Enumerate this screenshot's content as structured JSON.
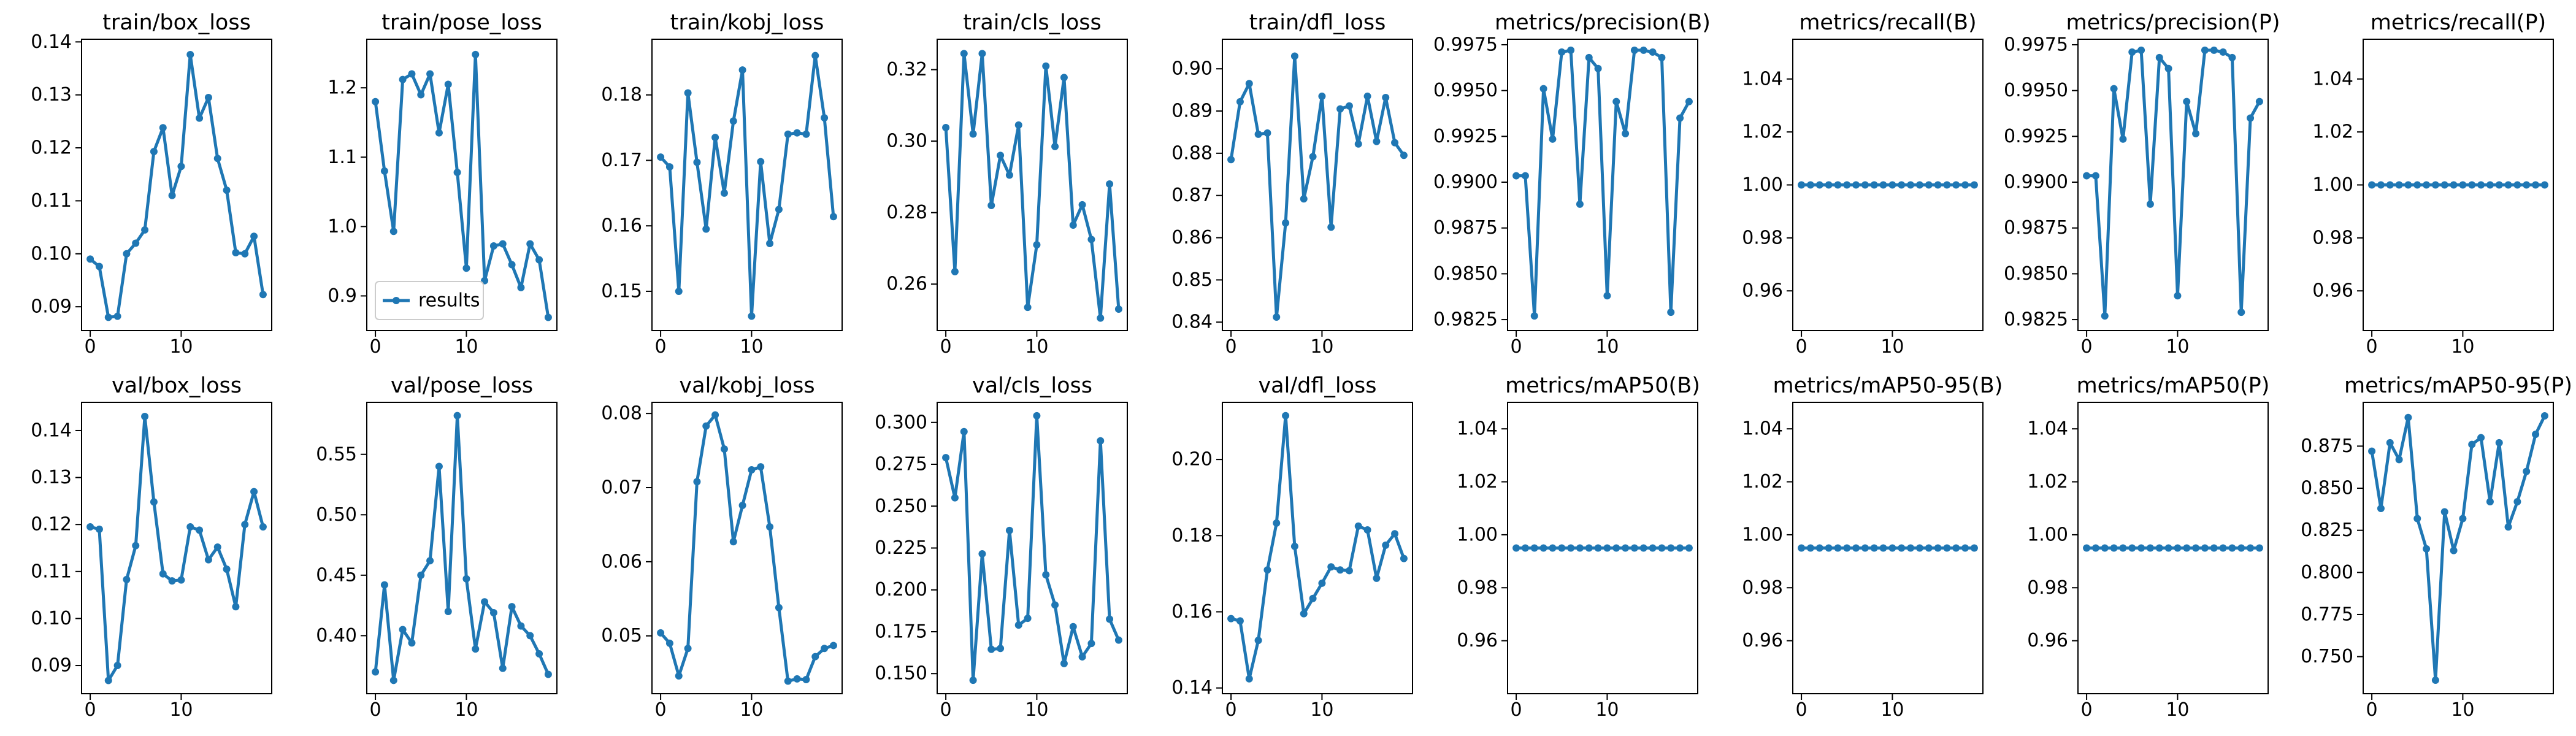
{
  "series_color": "#1f77b4",
  "legend": {
    "label": "results",
    "panel": 1,
    "location": "lower-left"
  },
  "chart_data": [
    {
      "type": "line",
      "title": "train/box_loss",
      "x": [
        0,
        1,
        2,
        3,
        4,
        5,
        6,
        7,
        8,
        9,
        10,
        11,
        12,
        13,
        14,
        15,
        16,
        17,
        18,
        19
      ],
      "values": [
        0.099,
        0.0976,
        0.088,
        0.0882,
        0.1,
        0.102,
        0.1045,
        0.1193,
        0.1238,
        0.111,
        0.1165,
        0.1376,
        0.1256,
        0.1295,
        0.118,
        0.112,
        0.1002,
        0.1,
        0.1033,
        0.0923
      ],
      "ylim": [
        0.0855,
        0.1405
      ],
      "yticks": [
        0.09,
        0.1,
        0.11,
        0.12,
        0.13,
        0.14
      ],
      "ytick_labels": [
        "0.09",
        "0.10",
        "0.11",
        "0.12",
        "0.13",
        "0.14"
      ],
      "xlim": [
        -0.95,
        19.95
      ],
      "xticks": [
        0,
        10
      ],
      "xtick_labels": [
        "0",
        "10"
      ]
    },
    {
      "type": "line",
      "title": "train/pose_loss",
      "x": [
        0,
        1,
        2,
        3,
        4,
        5,
        6,
        7,
        8,
        9,
        10,
        11,
        12,
        13,
        14,
        15,
        16,
        17,
        18,
        19
      ],
      "values": [
        1.18,
        1.08,
        0.993,
        1.212,
        1.22,
        1.19,
        1.22,
        1.135,
        1.205,
        1.078,
        0.94,
        1.248,
        0.922,
        0.972,
        0.975,
        0.945,
        0.912,
        0.975,
        0.952,
        0.869
      ],
      "ylim": [
        0.85,
        1.27
      ],
      "yticks": [
        0.9,
        1.0,
        1.1,
        1.2
      ],
      "ytick_labels": [
        "0.9",
        "1.0",
        "1.1",
        "1.2"
      ],
      "xlim": [
        -0.95,
        19.95
      ],
      "xticks": [
        0,
        10
      ],
      "xtick_labels": [
        "0",
        "10"
      ]
    },
    {
      "type": "line",
      "title": "train/kobj_loss",
      "x": [
        0,
        1,
        2,
        3,
        4,
        5,
        6,
        7,
        8,
        9,
        10,
        11,
        12,
        13,
        14,
        15,
        16,
        17,
        18,
        19
      ],
      "values": [
        0.1705,
        0.169,
        0.15,
        0.1803,
        0.1697,
        0.1595,
        0.1735,
        0.165,
        0.176,
        0.1838,
        0.1462,
        0.1698,
        0.1573,
        0.1625,
        0.174,
        0.1742,
        0.174,
        0.186,
        0.1765,
        0.1614
      ],
      "ylim": [
        0.144,
        0.1885
      ],
      "yticks": [
        0.15,
        0.16,
        0.17,
        0.18
      ],
      "ytick_labels": [
        "0.15",
        "0.16",
        "0.17",
        "0.18"
      ],
      "xlim": [
        -0.95,
        19.95
      ],
      "xticks": [
        0,
        10
      ],
      "xtick_labels": [
        "0",
        "10"
      ]
    },
    {
      "type": "line",
      "title": "train/cls_loss",
      "x": [
        0,
        1,
        2,
        3,
        4,
        5,
        6,
        7,
        8,
        9,
        10,
        11,
        12,
        13,
        14,
        15,
        16,
        17,
        18,
        19
      ],
      "values": [
        0.3038,
        0.2635,
        0.3245,
        0.302,
        0.3245,
        0.282,
        0.296,
        0.2905,
        0.3045,
        0.2535,
        0.271,
        0.321,
        0.2985,
        0.3178,
        0.2765,
        0.2822,
        0.2725,
        0.2505,
        0.288,
        0.253
      ],
      "ylim": [
        0.247,
        0.3285
      ],
      "yticks": [
        0.26,
        0.28,
        0.3,
        0.32
      ],
      "ytick_labels": [
        "0.26",
        "0.28",
        "0.30",
        "0.32"
      ],
      "xlim": [
        -0.95,
        19.95
      ],
      "xticks": [
        0,
        10
      ],
      "xtick_labels": [
        "0",
        "10"
      ]
    },
    {
      "type": "line",
      "title": "train/dfl_loss",
      "x": [
        0,
        1,
        2,
        3,
        4,
        5,
        6,
        7,
        8,
        9,
        10,
        11,
        12,
        13,
        14,
        15,
        16,
        17,
        18,
        19
      ],
      "values": [
        0.8785,
        0.8922,
        0.8965,
        0.8845,
        0.8848,
        0.8412,
        0.8635,
        0.903,
        0.8692,
        0.8792,
        0.8935,
        0.8625,
        0.8905,
        0.8912,
        0.8822,
        0.8935,
        0.8828,
        0.8932,
        0.8825,
        0.8795
      ],
      "ylim": [
        0.838,
        0.907
      ],
      "yticks": [
        0.84,
        0.85,
        0.86,
        0.87,
        0.88,
        0.89,
        0.9
      ],
      "ytick_labels": [
        "0.84",
        "0.85",
        "0.86",
        "0.87",
        "0.88",
        "0.89",
        "0.90"
      ],
      "xlim": [
        -0.95,
        19.95
      ],
      "xticks": [
        0,
        10
      ],
      "xtick_labels": [
        "0",
        "10"
      ]
    },
    {
      "type": "line",
      "title": "metrics/precision(B)",
      "x": [
        0,
        1,
        2,
        3,
        4,
        5,
        6,
        7,
        8,
        9,
        10,
        11,
        12,
        13,
        14,
        15,
        16,
        17,
        18,
        19
      ],
      "values": [
        0.99035,
        0.99035,
        0.9827,
        0.9951,
        0.99235,
        0.9971,
        0.9972,
        0.9888,
        0.9968,
        0.9962,
        0.9838,
        0.9944,
        0.99265,
        0.9972,
        0.9972,
        0.9971,
        0.9968,
        0.9829,
        0.9935,
        0.9944
      ],
      "ylim": [
        0.9819,
        0.9978
      ],
      "yticks": [
        0.9825,
        0.985,
        0.9875,
        0.99,
        0.9925,
        0.995,
        0.9975
      ],
      "ytick_labels": [
        "0.9825",
        "0.9850",
        "0.9875",
        "0.9900",
        "0.9925",
        "0.9950",
        "0.9975"
      ],
      "xlim": [
        -0.95,
        19.95
      ],
      "xticks": [
        0,
        10
      ],
      "xtick_labels": [
        "0",
        "10"
      ]
    },
    {
      "type": "line",
      "title": "metrics/recall(B)",
      "x": [
        0,
        1,
        2,
        3,
        4,
        5,
        6,
        7,
        8,
        9,
        10,
        11,
        12,
        13,
        14,
        15,
        16,
        17,
        18,
        19
      ],
      "values": [
        1,
        1,
        1,
        1,
        1,
        1,
        1,
        1,
        1,
        1,
        1,
        1,
        1,
        1,
        1,
        1,
        1,
        1,
        1,
        1
      ],
      "ylim": [
        0.945,
        1.055
      ],
      "yticks": [
        0.96,
        0.98,
        1.0,
        1.02,
        1.04
      ],
      "ytick_labels": [
        "0.96",
        "0.98",
        "1.00",
        "1.02",
        "1.04"
      ],
      "xlim": [
        -0.95,
        19.95
      ],
      "xticks": [
        0,
        10
      ],
      "xtick_labels": [
        "0",
        "10"
      ]
    },
    {
      "type": "line",
      "title": "metrics/precision(P)",
      "x": [
        0,
        1,
        2,
        3,
        4,
        5,
        6,
        7,
        8,
        9,
        10,
        11,
        12,
        13,
        14,
        15,
        16,
        17,
        18,
        19
      ],
      "values": [
        0.99035,
        0.99035,
        0.9827,
        0.9951,
        0.99235,
        0.9971,
        0.9972,
        0.9888,
        0.9968,
        0.9962,
        0.9838,
        0.9944,
        0.99265,
        0.9972,
        0.9972,
        0.9971,
        0.9968,
        0.9829,
        0.9935,
        0.9944
      ],
      "ylim": [
        0.9819,
        0.9978
      ],
      "yticks": [
        0.9825,
        0.985,
        0.9875,
        0.99,
        0.9925,
        0.995,
        0.9975
      ],
      "ytick_labels": [
        "0.9825",
        "0.9850",
        "0.9875",
        "0.9900",
        "0.9925",
        "0.9950",
        "0.9975"
      ],
      "xlim": [
        -0.95,
        19.95
      ],
      "xticks": [
        0,
        10
      ],
      "xtick_labels": [
        "0",
        "10"
      ]
    },
    {
      "type": "line",
      "title": "metrics/recall(P)",
      "x": [
        0,
        1,
        2,
        3,
        4,
        5,
        6,
        7,
        8,
        9,
        10,
        11,
        12,
        13,
        14,
        15,
        16,
        17,
        18,
        19
      ],
      "values": [
        1,
        1,
        1,
        1,
        1,
        1,
        1,
        1,
        1,
        1,
        1,
        1,
        1,
        1,
        1,
        1,
        1,
        1,
        1,
        1
      ],
      "ylim": [
        0.945,
        1.055
      ],
      "yticks": [
        0.96,
        0.98,
        1.0,
        1.02,
        1.04
      ],
      "ytick_labels": [
        "0.96",
        "0.98",
        "1.00",
        "1.02",
        "1.04"
      ],
      "xlim": [
        -0.95,
        19.95
      ],
      "xticks": [
        0,
        10
      ],
      "xtick_labels": [
        "0",
        "10"
      ]
    },
    {
      "type": "line",
      "title": "val/box_loss",
      "x": [
        0,
        1,
        2,
        3,
        4,
        5,
        6,
        7,
        8,
        9,
        10,
        11,
        12,
        13,
        14,
        15,
        16,
        17,
        18,
        19
      ],
      "values": [
        0.1195,
        0.119,
        0.0868,
        0.09,
        0.1083,
        0.1155,
        0.143,
        0.1248,
        0.1095,
        0.108,
        0.1082,
        0.1195,
        0.1188,
        0.1125,
        0.1152,
        0.1105,
        0.1025,
        0.12,
        0.127,
        0.1195
      ],
      "ylim": [
        0.084,
        0.146
      ],
      "yticks": [
        0.09,
        0.1,
        0.11,
        0.12,
        0.13,
        0.14
      ],
      "ytick_labels": [
        "0.09",
        "0.10",
        "0.11",
        "0.12",
        "0.13",
        "0.14"
      ],
      "xlim": [
        -0.95,
        19.95
      ],
      "xticks": [
        0,
        10
      ],
      "xtick_labels": [
        "0",
        "10"
      ]
    },
    {
      "type": "line",
      "title": "val/pose_loss",
      "x": [
        0,
        1,
        2,
        3,
        4,
        5,
        6,
        7,
        8,
        9,
        10,
        11,
        12,
        13,
        14,
        15,
        16,
        17,
        18,
        19
      ],
      "values": [
        0.37,
        0.442,
        0.363,
        0.405,
        0.394,
        0.45,
        0.462,
        0.54,
        0.42,
        0.582,
        0.447,
        0.389,
        0.428,
        0.419,
        0.373,
        0.424,
        0.408,
        0.4,
        0.385,
        0.368
      ],
      "ylim": [
        0.352,
        0.593
      ],
      "yticks": [
        0.4,
        0.45,
        0.5,
        0.55
      ],
      "ytick_labels": [
        "0.40",
        "0.45",
        "0.50",
        "0.55"
      ],
      "xlim": [
        -0.95,
        19.95
      ],
      "xticks": [
        0,
        10
      ],
      "xtick_labels": [
        "0",
        "10"
      ]
    },
    {
      "type": "line",
      "title": "val/kobj_loss",
      "x": [
        0,
        1,
        2,
        3,
        4,
        5,
        6,
        7,
        8,
        9,
        10,
        11,
        12,
        13,
        14,
        15,
        16,
        17,
        18,
        19
      ],
      "values": [
        0.0504,
        0.049,
        0.0446,
        0.0483,
        0.0708,
        0.0783,
        0.0798,
        0.0752,
        0.0627,
        0.0676,
        0.0724,
        0.0728,
        0.0647,
        0.0538,
        0.0439,
        0.0442,
        0.0441,
        0.0472,
        0.0483,
        0.0487
      ],
      "ylim": [
        0.0422,
        0.0815
      ],
      "yticks": [
        0.05,
        0.06,
        0.07,
        0.08
      ],
      "ytick_labels": [
        "0.05",
        "0.06",
        "0.07",
        "0.08"
      ],
      "xlim": [
        -0.95,
        19.95
      ],
      "xticks": [
        0,
        10
      ],
      "xtick_labels": [
        "0",
        "10"
      ]
    },
    {
      "type": "line",
      "title": "val/cls_loss",
      "x": [
        0,
        1,
        2,
        3,
        4,
        5,
        6,
        7,
        8,
        9,
        10,
        11,
        12,
        13,
        14,
        15,
        16,
        17,
        18,
        19
      ],
      "values": [
        0.279,
        0.255,
        0.2945,
        0.146,
        0.2215,
        0.1645,
        0.165,
        0.2355,
        0.179,
        0.183,
        0.304,
        0.209,
        0.191,
        0.156,
        0.178,
        0.16,
        0.168,
        0.289,
        0.1825,
        0.17
      ],
      "ylim": [
        0.138,
        0.312
      ],
      "yticks": [
        0.15,
        0.175,
        0.2,
        0.225,
        0.25,
        0.275,
        0.3
      ],
      "ytick_labels": [
        "0.150",
        "0.175",
        "0.200",
        "0.225",
        "0.250",
        "0.275",
        "0.300"
      ],
      "xlim": [
        -0.95,
        19.95
      ],
      "xticks": [
        0,
        10
      ],
      "xtick_labels": [
        "0",
        "10"
      ]
    },
    {
      "type": "line",
      "title": "val/dfl_loss",
      "x": [
        0,
        1,
        2,
        3,
        4,
        5,
        6,
        7,
        8,
        9,
        10,
        11,
        12,
        13,
        14,
        15,
        16,
        17,
        18,
        19
      ],
      "values": [
        0.1582,
        0.1576,
        0.1424,
        0.1525,
        0.171,
        0.1833,
        0.2115,
        0.1772,
        0.1595,
        0.1635,
        0.1675,
        0.1718,
        0.171,
        0.1708,
        0.1825,
        0.1815,
        0.1688,
        0.1775,
        0.1805,
        0.174
      ],
      "ylim": [
        0.1385,
        0.215
      ],
      "yticks": [
        0.14,
        0.16,
        0.18,
        0.2
      ],
      "ytick_labels": [
        "0.14",
        "0.16",
        "0.18",
        "0.20"
      ],
      "xlim": [
        -0.95,
        19.95
      ],
      "xticks": [
        0,
        10
      ],
      "xtick_labels": [
        "0",
        "10"
      ]
    },
    {
      "type": "line",
      "title": "metrics/mAP50(B)",
      "x": [
        0,
        1,
        2,
        3,
        4,
        5,
        6,
        7,
        8,
        9,
        10,
        11,
        12,
        13,
        14,
        15,
        16,
        17,
        18,
        19
      ],
      "values": [
        0.995,
        0.995,
        0.995,
        0.995,
        0.995,
        0.995,
        0.995,
        0.995,
        0.995,
        0.995,
        0.995,
        0.995,
        0.995,
        0.995,
        0.995,
        0.995,
        0.995,
        0.995,
        0.995,
        0.995
      ],
      "ylim": [
        0.94,
        1.05
      ],
      "yticks": [
        0.96,
        0.98,
        1.0,
        1.02,
        1.04
      ],
      "ytick_labels": [
        "0.96",
        "0.98",
        "1.00",
        "1.02",
        "1.04"
      ],
      "xlim": [
        -0.95,
        19.95
      ],
      "xticks": [
        0,
        10
      ],
      "xtick_labels": [
        "0",
        "10"
      ]
    },
    {
      "type": "line",
      "title": "metrics/mAP50-95(B)",
      "x": [
        0,
        1,
        2,
        3,
        4,
        5,
        6,
        7,
        8,
        9,
        10,
        11,
        12,
        13,
        14,
        15,
        16,
        17,
        18,
        19
      ],
      "values": [
        0.995,
        0.995,
        0.995,
        0.995,
        0.995,
        0.995,
        0.995,
        0.995,
        0.995,
        0.995,
        0.995,
        0.995,
        0.995,
        0.995,
        0.995,
        0.995,
        0.995,
        0.995,
        0.995,
        0.995
      ],
      "ylim": [
        0.94,
        1.05
      ],
      "yticks": [
        0.96,
        0.98,
        1.0,
        1.02,
        1.04
      ],
      "ytick_labels": [
        "0.96",
        "0.98",
        "1.00",
        "1.02",
        "1.04"
      ],
      "xlim": [
        -0.95,
        19.95
      ],
      "xticks": [
        0,
        10
      ],
      "xtick_labels": [
        "0",
        "10"
      ]
    },
    {
      "type": "line",
      "title": "metrics/mAP50(P)",
      "x": [
        0,
        1,
        2,
        3,
        4,
        5,
        6,
        7,
        8,
        9,
        10,
        11,
        12,
        13,
        14,
        15,
        16,
        17,
        18,
        19
      ],
      "values": [
        0.995,
        0.995,
        0.995,
        0.995,
        0.995,
        0.995,
        0.995,
        0.995,
        0.995,
        0.995,
        0.995,
        0.995,
        0.995,
        0.995,
        0.995,
        0.995,
        0.995,
        0.995,
        0.995,
        0.995
      ],
      "ylim": [
        0.94,
        1.05
      ],
      "yticks": [
        0.96,
        0.98,
        1.0,
        1.02,
        1.04
      ],
      "ytick_labels": [
        "0.96",
        "0.98",
        "1.00",
        "1.02",
        "1.04"
      ],
      "xlim": [
        -0.95,
        19.95
      ],
      "xticks": [
        0,
        10
      ],
      "xtick_labels": [
        "0",
        "10"
      ]
    },
    {
      "type": "line",
      "title": "metrics/mAP50-95(P)",
      "x": [
        0,
        1,
        2,
        3,
        4,
        5,
        6,
        7,
        8,
        9,
        10,
        11,
        12,
        13,
        14,
        15,
        16,
        17,
        18,
        19
      ],
      "values": [
        0.872,
        0.838,
        0.877,
        0.867,
        0.892,
        0.832,
        0.814,
        0.736,
        0.836,
        0.813,
        0.832,
        0.876,
        0.88,
        0.842,
        0.877,
        0.827,
        0.842,
        0.86,
        0.882,
        0.893
      ],
      "ylim": [
        0.728,
        0.901
      ],
      "yticks": [
        0.75,
        0.775,
        0.8,
        0.825,
        0.85,
        0.875
      ],
      "ytick_labels": [
        "0.750",
        "0.775",
        "0.800",
        "0.825",
        "0.850",
        "0.875"
      ],
      "xlim": [
        -0.95,
        19.95
      ],
      "xticks": [
        0,
        10
      ],
      "xtick_labels": [
        "0",
        "10"
      ]
    }
  ]
}
